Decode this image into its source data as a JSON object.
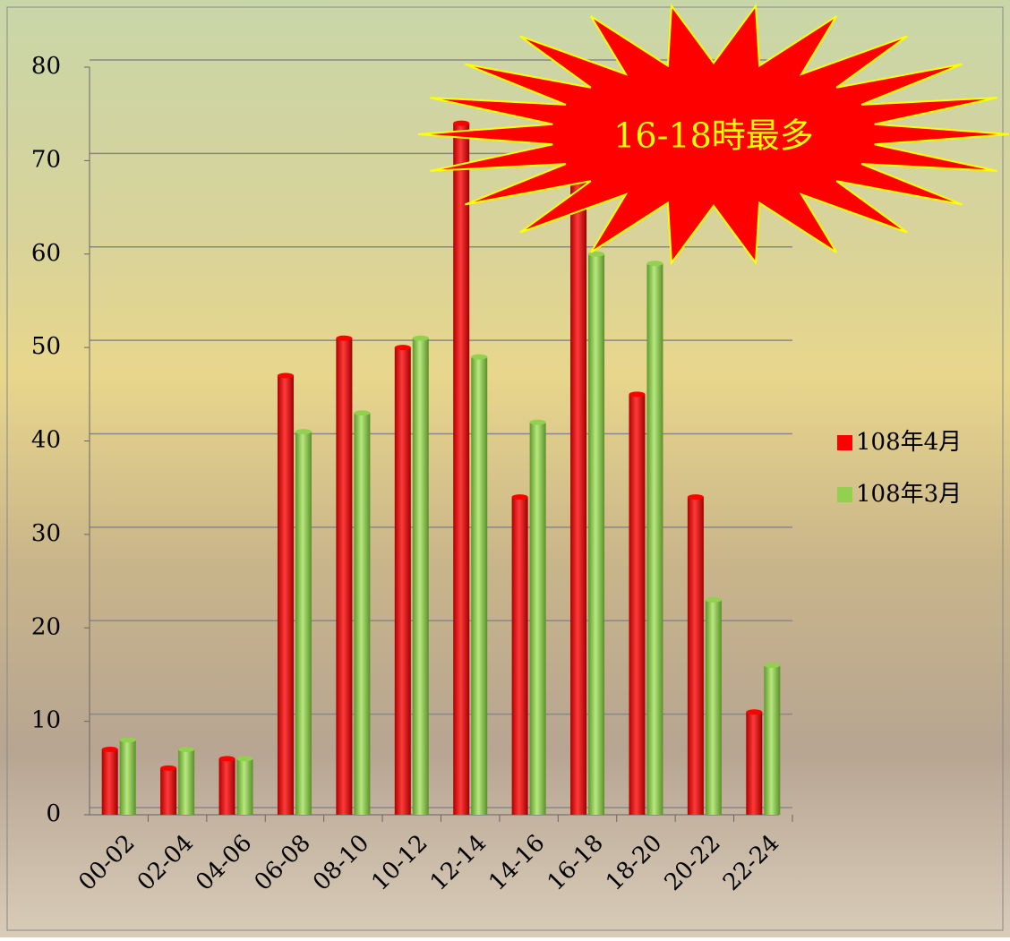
{
  "chart_data": {
    "type": "bar",
    "annotation": "16-18時最多",
    "categories": [
      "00-02",
      "02-04",
      "04-06",
      "06-08",
      "08-10",
      "10-12",
      "12-14",
      "14-16",
      "16-18",
      "18-20",
      "20-22",
      "22-24"
    ],
    "series": [
      {
        "name": "108年4月",
        "color": "#ff0000",
        "values": [
          7,
          5,
          6,
          47,
          51,
          50,
          74,
          34,
          70,
          45,
          34,
          11
        ]
      },
      {
        "name": "108年3月",
        "color": "#92d050",
        "values": [
          8,
          7,
          6,
          41,
          43,
          51,
          49,
          42,
          60,
          59,
          23,
          16
        ]
      }
    ],
    "ylim": [
      0,
      80
    ],
    "yticks": [
      0,
      10,
      20,
      30,
      40,
      50,
      60,
      70,
      80
    ],
    "grid": true,
    "legend": "right"
  }
}
